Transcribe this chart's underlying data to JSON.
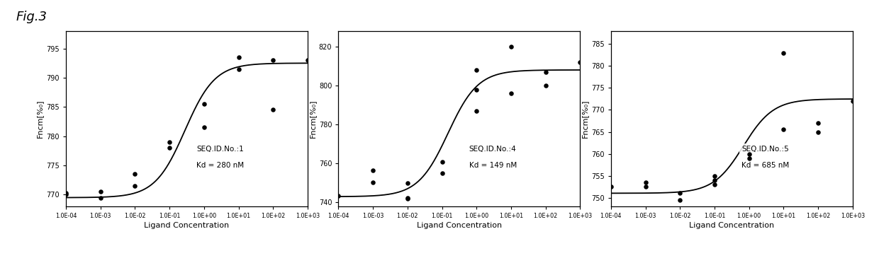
{
  "fig_label": "Fig.3",
  "background_color": "#ffffff",
  "panels": [
    {
      "seq_id": "SEQ.ID.No.:1",
      "kd_label": "Kd = 280 nM",
      "kd_value": 0.28,
      "ylabel": "Fncm[%₀]",
      "xlabel": "Ligand Concentration",
      "ylim": [
        768,
        798
      ],
      "yticks": [
        770,
        775,
        780,
        785,
        790,
        795
      ],
      "f_min": 769.5,
      "f_max": 792.5,
      "scatter_x": [
        0.0001,
        0.0001,
        0.001,
        0.001,
        0.01,
        0.01,
        0.1,
        0.1,
        1.0,
        1.0,
        10.0,
        10.0,
        100.0,
        100.0,
        1000.0
      ],
      "scatter_y": [
        770.3,
        770.0,
        770.5,
        769.5,
        773.5,
        771.5,
        778.0,
        779.0,
        781.5,
        785.5,
        793.5,
        791.5,
        793.0,
        784.5,
        793.0
      ]
    },
    {
      "seq_id": "SEQ.ID.No.:4",
      "kd_label": "Kd = 149 nM",
      "kd_value": 0.149,
      "ylabel": "Fncm[%₀]",
      "xlabel": "Ligand Concentration",
      "ylim": [
        738,
        828
      ],
      "yticks": [
        740,
        760,
        780,
        800,
        820
      ],
      "f_min": 743.0,
      "f_max": 808.0,
      "scatter_x": [
        0.0001,
        0.001,
        0.001,
        0.01,
        0.01,
        0.01,
        0.1,
        0.1,
        1.0,
        1.0,
        1.0,
        10.0,
        10.0,
        100.0,
        100.0,
        1000.0
      ],
      "scatter_y": [
        743.5,
        756.5,
        750.5,
        742.5,
        742.0,
        750.0,
        761.0,
        755.0,
        787.0,
        798.0,
        808.0,
        820.0,
        796.0,
        807.0,
        800.0,
        812.0
      ]
    },
    {
      "seq_id": "SEQ.ID.No.:5",
      "kd_label": "Kd = 685 nM",
      "kd_value": 0.685,
      "ylabel": "Fncm[%₀]",
      "xlabel": "Ligand Concentration",
      "ylim": [
        748,
        788
      ],
      "yticks": [
        750,
        755,
        760,
        765,
        770,
        775,
        780,
        785
      ],
      "f_min": 751.0,
      "f_max": 772.5,
      "scatter_x": [
        0.0001,
        0.001,
        0.001,
        0.01,
        0.01,
        0.1,
        0.1,
        0.1,
        1.0,
        1.0,
        10.0,
        10.0,
        100.0,
        100.0,
        1000.0
      ],
      "scatter_y": [
        752.5,
        752.5,
        753.5,
        751.0,
        749.5,
        755.0,
        754.0,
        753.0,
        760.0,
        759.0,
        765.5,
        783.0,
        767.0,
        765.0,
        772.0
      ]
    }
  ]
}
